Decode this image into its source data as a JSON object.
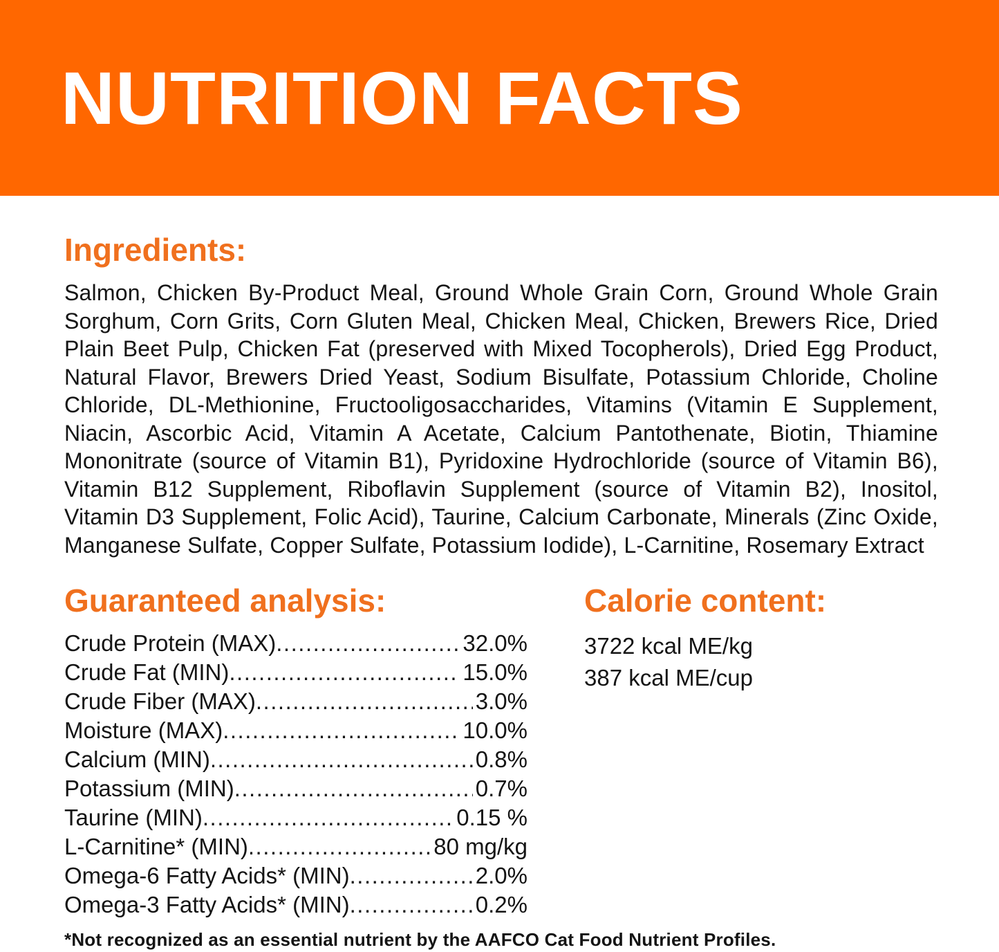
{
  "colors": {
    "banner_orange": "#FF6700",
    "heading_orange": "#F0701E",
    "text_ink": "#141414"
  },
  "banner": {
    "title": "NUTRITION FACTS"
  },
  "ingredients": {
    "heading": "Ingredients:",
    "text": "Salmon, Chicken By-Product Meal, Ground Whole Grain Corn, Ground Whole Grain Sorghum, Corn Grits, Corn Gluten Meal, Chicken Meal, Chicken, Brewers Rice, Dried Plain Beet Pulp, Chicken Fat (preserved with Mixed Tocopherols), Dried Egg Product, Natural Flavor, Brewers Dried Yeast, Sodium Bisulfate, Potassium Chloride, Choline Chloride, DL-Methionine, Fructooligosaccharides, Vitamins (Vitamin E Supplement, Niacin, Ascorbic Acid, Vitamin A Acetate, Calcium Pantothenate, Biotin, Thiamine Mononitrate (source of Vitamin B1), Pyridoxine Hydrochloride (source of Vitamin B6), Vitamin B12 Supplement, Riboflavin Supplement (source of Vitamin B2), Inositol, Vitamin D3 Supplement, Folic Acid), Taurine, Calcium Carbonate, Minerals (Zinc Oxide, Manganese Sulfate, Copper Sulfate, Potassium Iodide), L-Carnitine, Rosemary Extract"
  },
  "guaranteed_analysis": {
    "heading": "Guaranteed analysis:",
    "rows": [
      {
        "label": "Crude Protein (MAX)",
        "value": "32.0%"
      },
      {
        "label": "Crude Fat (MIN)",
        "value": "15.0%"
      },
      {
        "label": "Crude Fiber (MAX)",
        "value": "3.0%"
      },
      {
        "label": "Moisture (MAX)",
        "value": "10.0%"
      },
      {
        "label": "Calcium (MIN)",
        "value": "0.8%"
      },
      {
        "label": "Potassium (MIN)",
        "value": "0.7%"
      },
      {
        "label": "Taurine (MIN)",
        "value": "0.15 %"
      },
      {
        "label": "L-Carnitine* (MIN)",
        "value": "80 mg/kg"
      },
      {
        "label": "Omega-6 Fatty Acids* (MIN)",
        "value": "2.0%"
      },
      {
        "label": "Omega-3 Fatty Acids* (MIN)",
        "value": "0.2%"
      }
    ]
  },
  "calorie_content": {
    "heading": "Calorie content:",
    "lines": [
      "3722 kcal ME/kg",
      "387 kcal ME/cup"
    ]
  },
  "footnote": "*Not recognized as an essential nutrient by the AAFCO Cat Food Nutrient Profiles."
}
